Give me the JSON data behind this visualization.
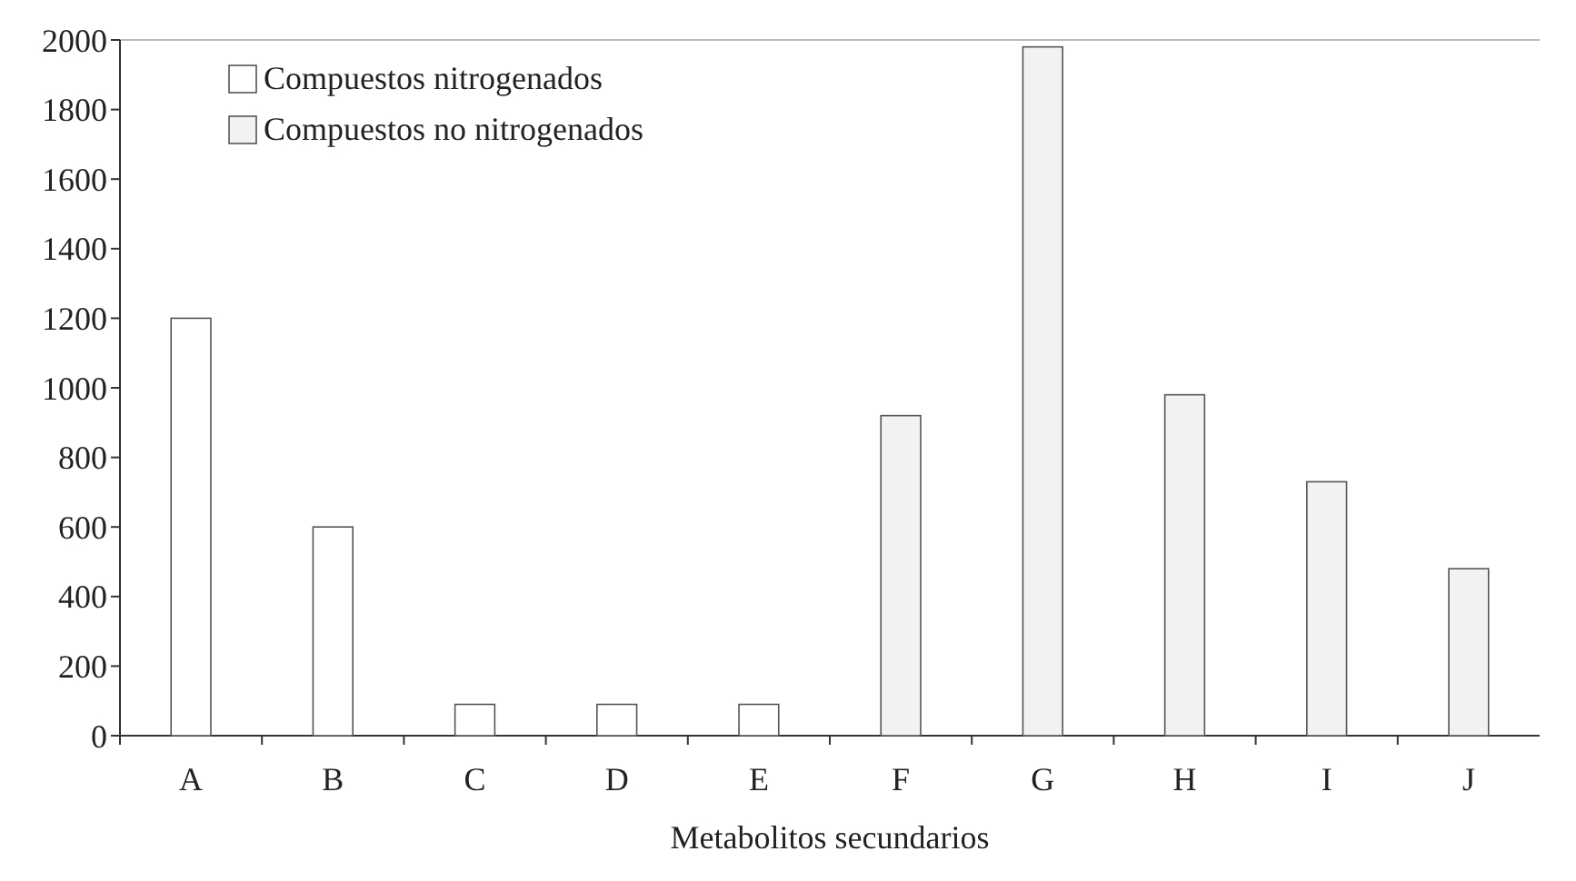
{
  "chart_data": {
    "type": "bar",
    "xlabel": "Metabolitos secundarios",
    "categories": [
      "A",
      "B",
      "C",
      "D",
      "E",
      "F",
      "G",
      "H",
      "I",
      "J"
    ],
    "series": [
      {
        "name": "Compuestos nitrogenados",
        "color": "#ffffff",
        "values": [
          1200,
          600,
          90,
          90,
          90,
          null,
          null,
          null,
          null,
          null
        ]
      },
      {
        "name": "Compuestos no nitrogenados",
        "color": "#f2f2f2",
        "values": [
          null,
          null,
          null,
          null,
          null,
          920,
          1980,
          980,
          730,
          480
        ]
      }
    ],
    "ylim": [
      0,
      2000
    ],
    "yticks": [
      0,
      200,
      400,
      600,
      800,
      1000,
      1200,
      1400,
      1600,
      1800,
      2000
    ],
    "grid": false,
    "legend": "top left"
  }
}
